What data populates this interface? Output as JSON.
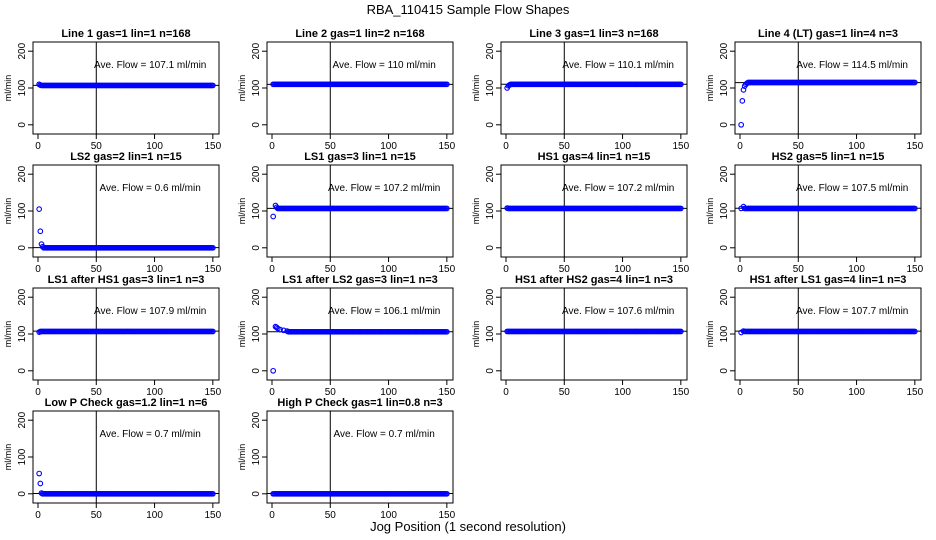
{
  "chart_data": {
    "title": "RBA_110415  Sample Flow Shapes",
    "xlabel": "Jog Position (1 second resolution)",
    "ylabel": "ml/min",
    "x_ticks": [
      0,
      50,
      100,
      150
    ],
    "y_ticks": [
      0,
      100,
      200
    ],
    "x_range": [
      0,
      151
    ],
    "y_range": [
      -25,
      225
    ],
    "reference_line_x": 50,
    "point_color": "#0000ff",
    "panels": [
      {
        "type": "scatter",
        "title": "Line 1 gas=1 lin=1 n=168",
        "annotation": "Ave. Flow = 107.1  ml/min",
        "mean": 107.1,
        "points": [
          [
            1,
            110
          ],
          [
            2,
            108
          ]
        ],
        "steady": {
          "from": 3,
          "to": 150,
          "value": 107
        }
      },
      {
        "type": "scatter",
        "title": "Line 2 gas=1 lin=2 n=168",
        "annotation": "Ave. Flow = 110  ml/min",
        "mean": 110,
        "points": [
          [
            1,
            110
          ],
          [
            2,
            110
          ]
        ],
        "steady": {
          "from": 3,
          "to": 150,
          "value": 110
        }
      },
      {
        "type": "scatter",
        "title": "Line 3 gas=1 lin=3 n=168",
        "annotation": "Ave. Flow = 110.1  ml/min",
        "mean": 110.1,
        "points": [
          [
            1,
            100
          ],
          [
            2,
            106
          ],
          [
            3,
            108
          ]
        ],
        "steady": {
          "from": 4,
          "to": 150,
          "value": 110
        }
      },
      {
        "type": "scatter",
        "title": "Line 4 (LT) gas=1 lin=4 n=3",
        "annotation": "Ave. Flow = 114.5  ml/min",
        "mean": 114.5,
        "points": [
          [
            1,
            0
          ],
          [
            2,
            65
          ],
          [
            3,
            95
          ],
          [
            4,
            105
          ],
          [
            5,
            110
          ],
          [
            6,
            113
          ]
        ],
        "steady": {
          "from": 7,
          "to": 150,
          "value": 115
        }
      },
      {
        "type": "scatter",
        "title": "LS2 gas=2 lin=1 n=15",
        "annotation": "Ave. Flow = 0.6  ml/min",
        "mean": 0.6,
        "points": [
          [
            1,
            105
          ],
          [
            2,
            45
          ],
          [
            3,
            10
          ],
          [
            4,
            3
          ]
        ],
        "steady": {
          "from": 5,
          "to": 150,
          "value": 0
        }
      },
      {
        "type": "scatter",
        "title": "LS1 gas=3 lin=1 n=15",
        "annotation": "Ave. Flow = 107.2  ml/min",
        "mean": 107.2,
        "points": [
          [
            1,
            85
          ],
          [
            3,
            115
          ],
          [
            4,
            110
          ]
        ],
        "steady": {
          "from": 5,
          "to": 150,
          "value": 107
        }
      },
      {
        "type": "scatter",
        "title": "HS1 gas=4 lin=1 n=15",
        "annotation": "Ave. Flow = 107.2  ml/min",
        "mean": 107.2,
        "points": [
          [
            1,
            108
          ],
          [
            2,
            107
          ]
        ],
        "steady": {
          "from": 3,
          "to": 150,
          "value": 107
        }
      },
      {
        "type": "scatter",
        "title": "HS2 gas=5 lin=1 n=15",
        "annotation": "Ave. Flow = 107.5  ml/min",
        "mean": 107.5,
        "points": [
          [
            1,
            107
          ],
          [
            3,
            112
          ]
        ],
        "steady": {
          "from": 4,
          "to": 150,
          "value": 107
        }
      },
      {
        "type": "scatter",
        "title": "LS1 after HS1 gas=3 lin=1 n=3",
        "annotation": "Ave. Flow = 107.9  ml/min",
        "mean": 107.9,
        "points": [
          [
            1,
            105
          ],
          [
            2,
            107
          ]
        ],
        "steady": {
          "from": 3,
          "to": 150,
          "value": 107
        }
      },
      {
        "type": "scatter",
        "title": "LS1 after LS2 gas=3 lin=1 n=3",
        "annotation": "Ave. Flow = 106.1  ml/min",
        "mean": 106.1,
        "points": [
          [
            1,
            0
          ],
          [
            3,
            120
          ],
          [
            4,
            118
          ],
          [
            5,
            115
          ],
          [
            7,
            112
          ],
          [
            10,
            110
          ],
          [
            13,
            108
          ]
        ],
        "steady": {
          "from": 14,
          "to": 150,
          "value": 106
        }
      },
      {
        "type": "scatter",
        "title": "HS1 after HS2 gas=4 lin=1 n=3",
        "annotation": "Ave. Flow = 107.6  ml/min",
        "mean": 107.6,
        "points": [
          [
            1,
            107
          ]
        ],
        "steady": {
          "from": 2,
          "to": 150,
          "value": 107
        }
      },
      {
        "type": "scatter",
        "title": "HS1 after LS1 gas=4 lin=1 n=3",
        "annotation": "Ave. Flow = 107.7  ml/min",
        "mean": 107.7,
        "points": [
          [
            1,
            104
          ],
          [
            3,
            108
          ]
        ],
        "steady": {
          "from": 4,
          "to": 150,
          "value": 107
        }
      },
      {
        "type": "scatter",
        "title": "Low P Check gas=1.2 lin=1 n=6",
        "annotation": "Ave. Flow = 0.7  ml/min",
        "mean": 0.7,
        "points": [
          [
            1,
            55
          ],
          [
            2,
            28
          ],
          [
            3,
            2
          ]
        ],
        "steady": {
          "from": 4,
          "to": 150,
          "value": 0
        }
      },
      {
        "type": "scatter",
        "title": "High P Check gas=1 lin=0.8 n=3",
        "annotation": "Ave. Flow = 0.7  ml/min",
        "mean": 0.7,
        "points": [
          [
            1,
            0
          ]
        ],
        "steady": {
          "from": 2,
          "to": 150,
          "value": 0
        }
      }
    ]
  }
}
